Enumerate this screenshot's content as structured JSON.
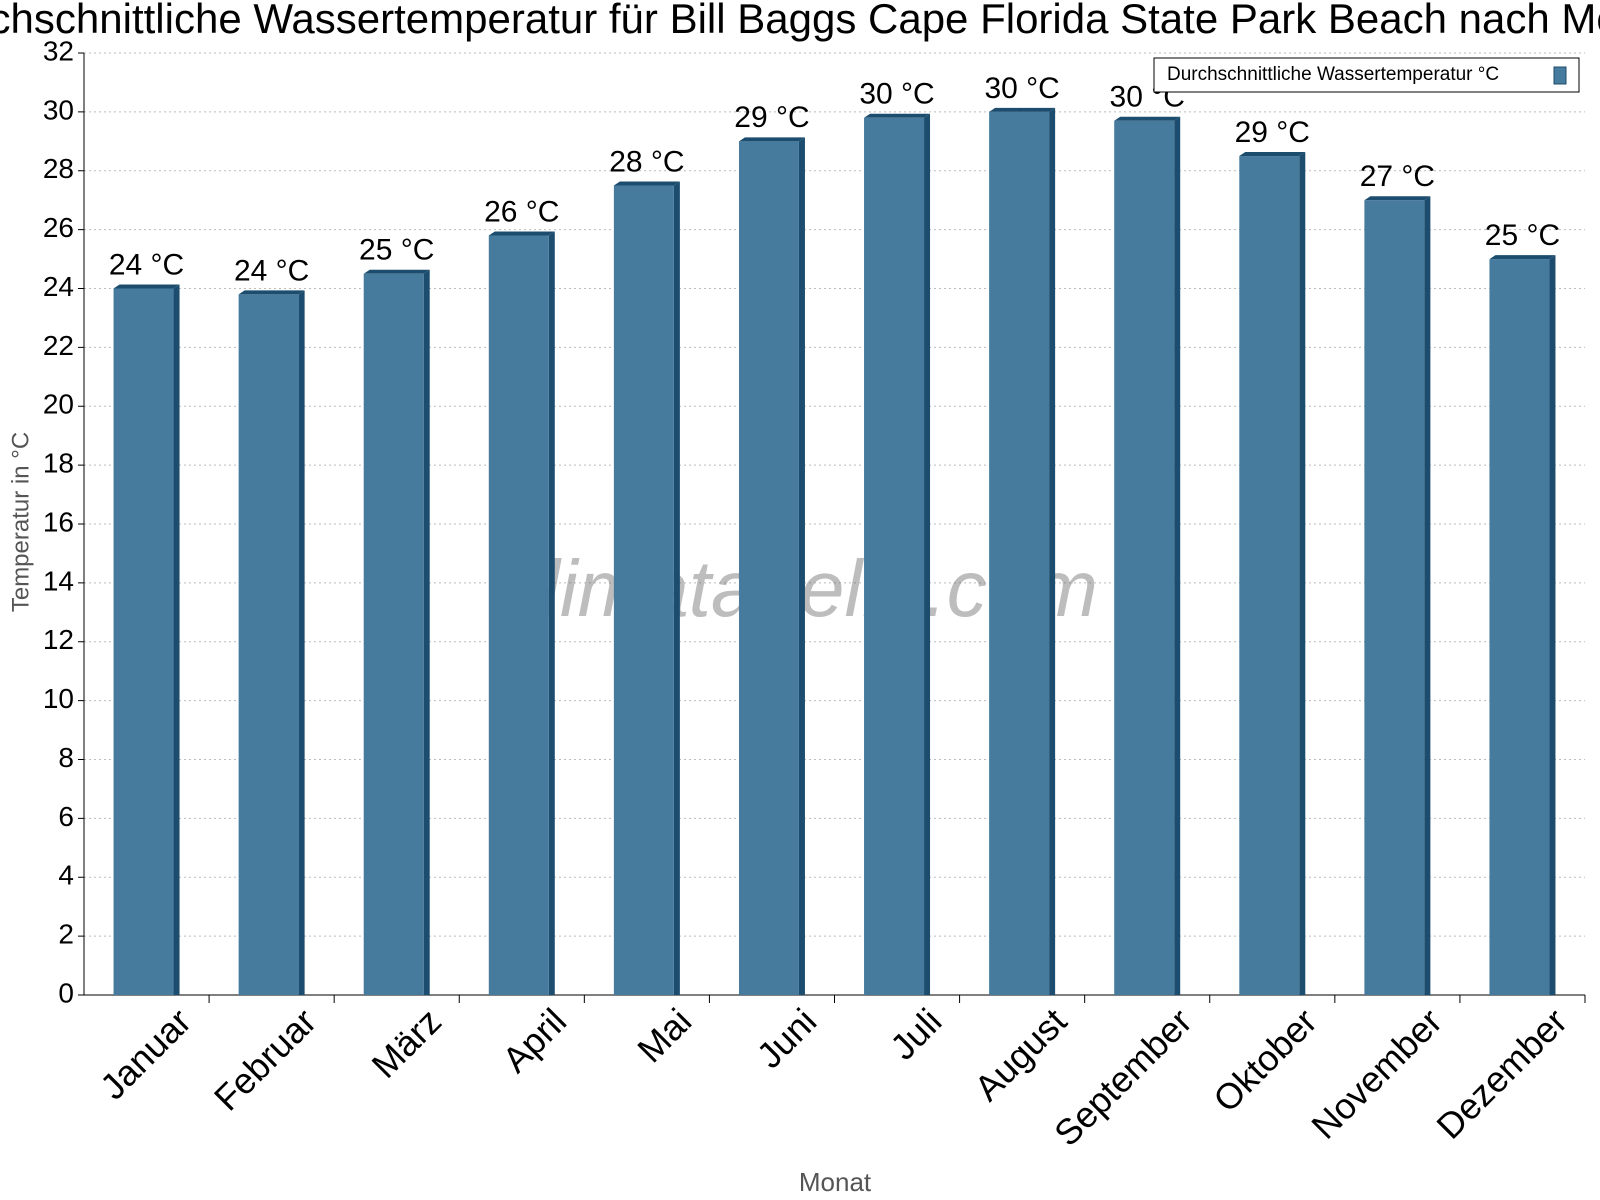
{
  "chart_data": {
    "type": "bar",
    "title": "Durchschnittliche Wassertemperatur für Bill Baggs Cape Florida State Park Beach nach Monat",
    "x_label": "Monat",
    "y_label": "Temperatur in °C",
    "watermark": "klimatabelle.com",
    "categories": [
      "Januar",
      "Februar",
      "März",
      "April",
      "Mai",
      "Juni",
      "Juli",
      "August",
      "September",
      "Oktober",
      "November",
      "Dezember"
    ],
    "series": [
      {
        "name": "Durchschnittliche Wassertemperatur °C",
        "color": "#467b9e",
        "values": [
          24.0,
          23.8,
          24.5,
          25.8,
          27.5,
          29.0,
          29.8,
          30.0,
          29.7,
          28.5,
          27.0,
          25.0
        ],
        "value_labels": [
          "24 °C",
          "24 °C",
          "25 °C",
          "26 °C",
          "28 °C",
          "29 °C",
          "30 °C",
          "30 °C",
          "30 °C",
          "29 °C",
          "27 °C",
          "25 °C"
        ]
      }
    ],
    "ylim": [
      0,
      32
    ],
    "yticks": [
      0,
      2,
      4,
      6,
      8,
      10,
      12,
      14,
      16,
      18,
      20,
      22,
      24,
      26,
      28,
      30,
      32
    ],
    "grid": true,
    "legend": "top-right"
  }
}
